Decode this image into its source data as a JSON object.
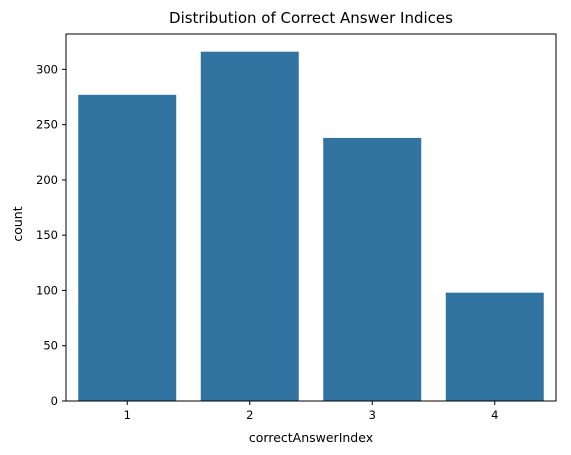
{
  "chart_data": {
    "type": "bar",
    "title": "Distribution of Correct Answer Indices",
    "xlabel": "correctAnswerIndex",
    "ylabel": "count",
    "categories": [
      "1",
      "2",
      "3",
      "4"
    ],
    "values": [
      277,
      316,
      238,
      98
    ],
    "ylim": [
      0,
      332
    ],
    "yticks": [
      0,
      50,
      100,
      150,
      200,
      250,
      300
    ],
    "bar_color": "#3274a1",
    "grid": false,
    "legend": "none"
  }
}
